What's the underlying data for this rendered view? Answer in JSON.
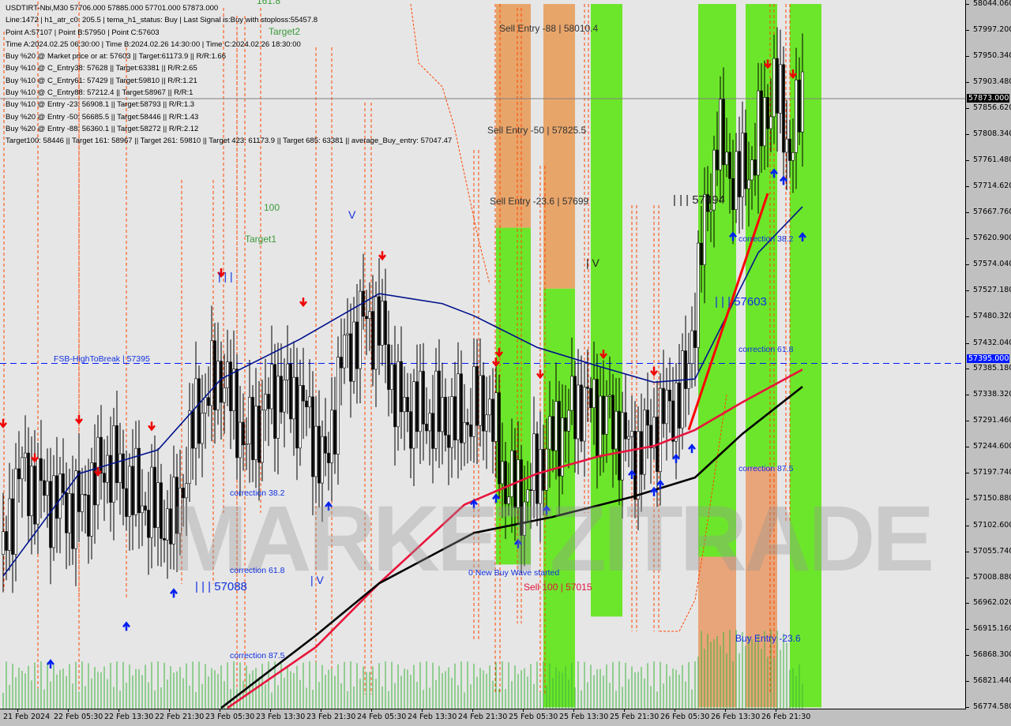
{
  "header": {
    "lines": [
      "USDTIRT-Nbi,M30  57706.000 57885.000 57701.000 57873.000",
      "Line:1472 | h1_atr_c0: 205.5 | tema_h1_status: Buy | Last Signal is:Buy with stoploss:55457.8",
      "Point A:57107 | Point B:57950 | Point C:57603",
      "Time A:2024.02.25 06:30:00 | Time B:2024.02.26 14:30:00 | Time C:2024.02.26 18:30:00",
      "Buy %20 @ Market price or at: 57603 || Target:61173.9 || R/R:1.66",
      "Buy %10 @ C_Entry38: 57628 || Target:63381 || R/R:2.65",
      "Buy %10 @ C_Entry61: 57429 || Target:59810 || R/R:1.21",
      "Buy %10 @ C_Entry88: 57212.4 || Target:58967 || R/R:1",
      "Buy %10 @ Entry -23: 56908.1 || Target:58793 || R/R:1.3",
      "Buy %20 @ Entry -50: 56685.5 || Target:58446 || R/R:1.43",
      "Buy %20 @ Entry -88: 56360.1 || Target:58272 || R/R:2.12",
      "Target100: 58446 || Target 161: 58967 || Target 261: 59810 || Target 423: 61173.9 || Target 685: 63381 || average_Buy_entry: 57047.47"
    ]
  },
  "watermark": "MARKETZITRADE",
  "annotations": {
    "sell_88": "Sell Entry -88 | 58010.4",
    "sell_50": "Sell Entry -50 | 57825.5",
    "sell_236": "Sell Entry -23.6 | 57699",
    "wave3_right": "| | | 57494",
    "wave4_right": "| V",
    "wave3_b": "| | | 57603",
    "corr382_r": "correction 38.2",
    "corr618_r": "correction 61.8",
    "corr875_r": "correction 87.5",
    "buy_entry": "Buy Entry -23.6",
    "new_wave": "0 New Buy Wave started",
    "sell100": "Sell 100 | 57015",
    "fsb": "FSB-HighToBreak | 57395",
    "corr382_l": "correction 38.2",
    "corr618_l": "correction 61.8",
    "corr875_l": "correction 87.5",
    "wave3_left": "| | | 57088",
    "wave4_left": "| V",
    "wave3_top": "| | |",
    "target1": "Target1",
    "t100": "100",
    "target2": "Target2",
    "t1618": "161.8",
    "wave5": "V"
  },
  "chart_data": {
    "type": "candlestick",
    "symbol": "USDTIRT-Nbi",
    "timeframe": "M30",
    "ylim": [
      56774.58,
      58044.06
    ],
    "y_ticks": [
      "58044.060",
      "57997.200",
      "57950.340",
      "57903.480",
      "57856.620",
      "57808.340",
      "57761.480",
      "57714.620",
      "57667.760",
      "57620.900",
      "57574.040",
      "57527.180",
      "57480.320",
      "57432.040",
      "57385.180",
      "57338.320",
      "57291.460",
      "57244.600",
      "57197.740",
      "57150.880",
      "57102.600",
      "57055.740",
      "57008.880",
      "56962.020",
      "56915.160",
      "56868.300",
      "56821.440",
      "56774.580"
    ],
    "x_ticks": [
      "21 Feb 2024",
      "22 Feb 05:30",
      "22 Feb 13:30",
      "22 Feb 21:30",
      "23 Feb 05:30",
      "23 Feb 13:30",
      "23 Feb 21:30",
      "24 Feb 05:30",
      "24 Feb 13:30",
      "24 Feb 21:30",
      "25 Feb 05:30",
      "25 Feb 13:30",
      "25 Feb 21:30",
      "26 Feb 05:30",
      "26 Feb 13:30",
      "26 Feb 21:30"
    ],
    "current_price": "57873.000",
    "fsb_level": "57395.000",
    "close_path": [
      [
        "21 Feb 18:30",
        57050
      ],
      [
        "21 Feb 21:00",
        57200
      ],
      [
        "22 Feb 02:00",
        57150
      ],
      [
        "22 Feb 06:30",
        57130
      ],
      [
        "22 Feb 11:00",
        57220
      ],
      [
        "22 Feb 16:00",
        57150
      ],
      [
        "22 Feb 21:30",
        57100
      ],
      [
        "23 Feb 01:00",
        57300
      ],
      [
        "23 Feb 05:00",
        57380
      ],
      [
        "23 Feb 09:00",
        57250
      ],
      [
        "23 Feb 14:00",
        57350
      ],
      [
        "23 Feb 18:00",
        57320
      ],
      [
        "23 Feb 21:30",
        57200
      ],
      [
        "24 Feb 00:00",
        57400
      ],
      [
        "24 Feb 04:00",
        57480
      ],
      [
        "24 Feb 06:30",
        57450
      ],
      [
        "24 Feb 09:00",
        57320
      ],
      [
        "24 Feb 14:00",
        57300
      ],
      [
        "24 Feb 19:00",
        57290
      ],
      [
        "24 Feb 23:00",
        57330
      ],
      [
        "25 Feb 02:00",
        57180
      ],
      [
        "25 Feb 05:00",
        57150
      ],
      [
        "25 Feb 09:00",
        57250
      ],
      [
        "25 Feb 14:00",
        57330
      ],
      [
        "25 Feb 18:00",
        57300
      ],
      [
        "25 Feb 22:30",
        57230
      ],
      [
        "26 Feb 03:00",
        57300
      ],
      [
        "26 Feb 06:30",
        57350
      ],
      [
        "26 Feb 09:00",
        57600
      ],
      [
        "26 Feb 11:30",
        57800
      ],
      [
        "26 Feb 14:30",
        57720
      ],
      [
        "26 Feb 17:00",
        57760
      ],
      [
        "26 Feb 20:30",
        57900
      ],
      [
        "26 Feb 23:00",
        57780
      ],
      [
        "27 Feb 01:00",
        57873
      ]
    ],
    "series": [
      {
        "color": "#00128c",
        "values": [
          [
            "21 Feb 18:30",
            57011
          ],
          [
            "22 Feb 06:30",
            57196
          ],
          [
            "22 Feb 19:00",
            57239
          ],
          [
            "23 Feb 05:00",
            57367
          ],
          [
            "23 Feb 17:30",
            57439
          ],
          [
            "24 Feb 06:00",
            57521
          ],
          [
            "24 Feb 16:00",
            57503
          ],
          [
            "24 Feb 21:00",
            57481
          ],
          [
            "25 Feb 07:00",
            57424
          ],
          [
            "25 Feb 17:00",
            57389
          ],
          [
            "26 Feb 01:30",
            57361
          ],
          [
            "26 Feb 08:00",
            57367
          ],
          [
            "26 Feb 13:00",
            57481
          ],
          [
            "26 Feb 18:00",
            57595
          ],
          [
            "27 Feb 01:00",
            57678
          ]
        ]
      },
      {
        "color": "#e8143c",
        "values": [
          [
            "23 Feb 06:00",
            56773
          ],
          [
            "23 Feb 20:00",
            56883
          ],
          [
            "24 Feb 06:00",
            56998
          ],
          [
            "24 Feb 19:30",
            57140
          ],
          [
            "25 Feb 07:00",
            57196
          ],
          [
            "25 Feb 17:00",
            57228
          ],
          [
            "26 Feb 01:30",
            57246
          ],
          [
            "26 Feb 08:00",
            57275
          ],
          [
            "26 Feb 15:30",
            57325
          ],
          [
            "27 Feb 01:00",
            57384
          ]
        ]
      },
      {
        "color": "#000000",
        "values": [
          [
            "23 Feb 05:00",
            56773
          ],
          [
            "23 Feb 20:00",
            56904
          ],
          [
            "24 Feb 06:00",
            56998
          ],
          [
            "24 Feb 21:00",
            57089
          ],
          [
            "25 Feb 09:30",
            57118
          ],
          [
            "25 Feb 22:00",
            57154
          ],
          [
            "26 Feb 08:00",
            57189
          ],
          [
            "26 Feb 15:30",
            57268
          ],
          [
            "27 Feb 01:00",
            57353
          ]
        ]
      }
    ],
    "trend_line": [
      [
        "26 Feb 07:00",
        57275
      ],
      [
        "26 Feb 19:30",
        57702
      ]
    ],
    "sell_signals": [
      [
        "21 Feb 18:30",
        57282
      ],
      [
        "21 Feb 23:30",
        57220
      ],
      [
        "22 Feb 06:30",
        57289
      ],
      [
        "22 Feb 09:30",
        57195
      ],
      [
        "22 Feb 18:00",
        57277
      ],
      [
        "23 Feb 05:00",
        57554
      ],
      [
        "23 Feb 18:00",
        57501
      ],
      [
        "24 Feb 06:30",
        57585
      ],
      [
        "25 Feb 01:00",
        57410
      ],
      [
        "25 Feb 00:30",
        57393
      ],
      [
        "25 Feb 07:30",
        57371
      ],
      [
        "25 Feb 17:30",
        57407
      ],
      [
        "26 Feb 01:30",
        57376
      ],
      [
        "26 Feb 19:30",
        57931
      ],
      [
        "26 Feb 23:30",
        57913
      ]
    ],
    "buy_signals": [
      [
        "22 Feb 02:00",
        56857
      ],
      [
        "22 Feb 14:00",
        56925
      ],
      [
        "22 Feb 21:30",
        56985
      ],
      [
        "23 Feb 22:00",
        57142
      ],
      [
        "24 Feb 21:00",
        57146
      ],
      [
        "25 Feb 00:30",
        57156
      ],
      [
        "25 Feb 04:00",
        57074
      ],
      [
        "25 Feb 08:30",
        57135
      ],
      [
        "25 Feb 22:00",
        57199
      ],
      [
        "26 Feb 01:30",
        57168
      ],
      [
        "26 Feb 02:30",
        57181
      ],
      [
        "26 Feb 05:00",
        57228
      ],
      [
        "26 Feb 07:30",
        57246
      ],
      [
        "26 Feb 14:00",
        57629
      ],
      [
        "26 Feb 20:30",
        57743
      ],
      [
        "26 Feb 22:00",
        57730
      ],
      [
        "27 Feb 01:00",
        57628
      ]
    ],
    "zones": [
      {
        "from": "25 Feb 00:30",
        "to": "25 Feb 06:00",
        "parts": [
          {
            "color": "#e8a060",
            "top": 58044,
            "bottom": 57640
          },
          {
            "color": "#62e61a",
            "top": 57640,
            "bottom": 57032
          }
        ]
      },
      {
        "from": "25 Feb 08:00",
        "to": "25 Feb 13:00",
        "parts": [
          {
            "color": "#e8a060",
            "top": 58044,
            "bottom": 57530
          },
          {
            "color": "#62e61a",
            "top": 57530,
            "bottom": 56774
          }
        ]
      },
      {
        "from": "25 Feb 15:30",
        "to": "25 Feb 20:30",
        "parts": [
          {
            "color": "#62e61a",
            "top": 58044,
            "bottom": 56938
          }
        ]
      },
      {
        "from": "26 Feb 08:30",
        "to": "26 Feb 14:30",
        "parts": [
          {
            "color": "#62e61a",
            "top": 58044,
            "bottom": 57046
          },
          {
            "color": "#e8a070",
            "top": 57046,
            "bottom": 56774
          }
        ]
      },
      {
        "from": "26 Feb 16:00",
        "to": "26 Feb 21:00",
        "parts": [
          {
            "color": "#62e61a",
            "top": 58044,
            "bottom": 57208
          },
          {
            "color": "#e8a070",
            "top": 57208,
            "bottom": 56774
          }
        ]
      },
      {
        "from": "26 Feb 23:00",
        "to": "27 Feb 04:00",
        "parts": [
          {
            "color": "#62e61a",
            "top": 58044,
            "bottom": 56774
          }
        ]
      }
    ]
  }
}
